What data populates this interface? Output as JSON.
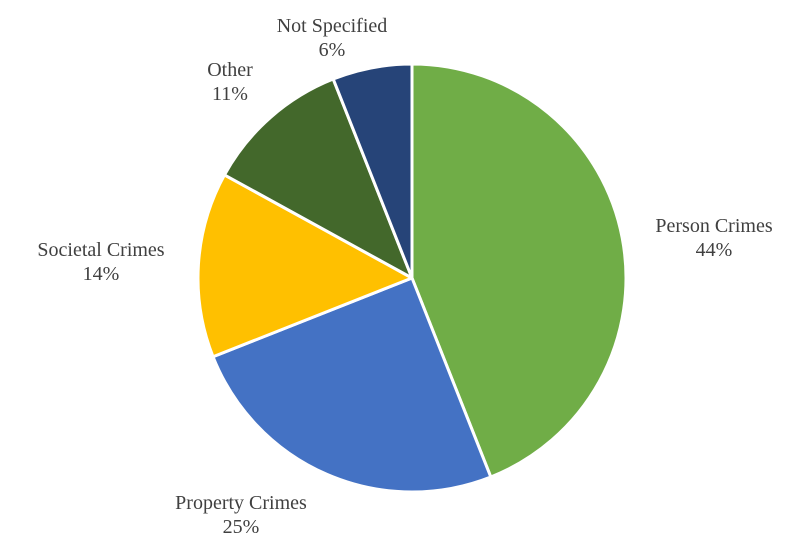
{
  "chart_data": {
    "type": "pie",
    "title": "",
    "start_angle_deg": 0,
    "direction": "clockwise",
    "slices": [
      {
        "label": "Person Crimes",
        "value": 44,
        "value_label": "44%",
        "color": "#70AD47"
      },
      {
        "label": "Property Crimes",
        "value": 25,
        "value_label": "25%",
        "color": "#4472C4"
      },
      {
        "label": "Societal Crimes",
        "value": 14,
        "value_label": "14%",
        "color": "#FFC000"
      },
      {
        "label": "Other",
        "value": 11,
        "value_label": "11%",
        "color": "#43682B"
      },
      {
        "label": "Not Specified",
        "value": 6,
        "value_label": "6%",
        "color": "#264478"
      }
    ],
    "legend": "none",
    "slice_border_color": "#FFFFFF",
    "label_color": "#404040"
  }
}
